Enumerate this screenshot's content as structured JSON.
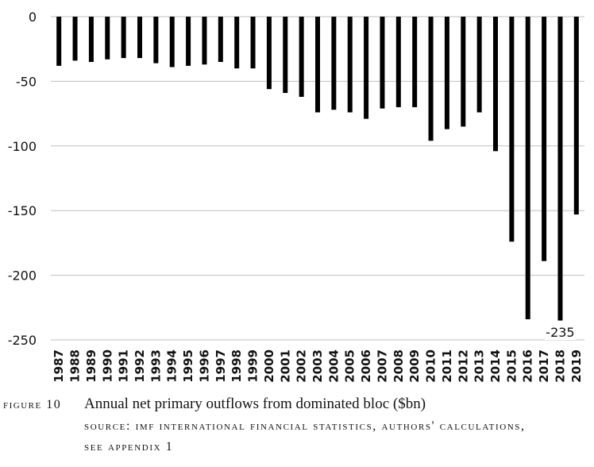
{
  "chart_data": {
    "type": "bar",
    "title": "",
    "xlabel": "",
    "ylabel": "",
    "ylim": [
      -250,
      0
    ],
    "yticks": [
      0,
      -50,
      -100,
      -150,
      -200,
      -250
    ],
    "grid": "horizontal",
    "legend": "none",
    "bar_color": "#000000",
    "grid_color": "#bfbfbf",
    "categories": [
      "1987",
      "1988",
      "1989",
      "1990",
      "1991",
      "1992",
      "1993",
      "1994",
      "1995",
      "1996",
      "1997",
      "1998",
      "1999",
      "2000",
      "2001",
      "2002",
      "2003",
      "2004",
      "2005",
      "2006",
      "2007",
      "2008",
      "2009",
      "2010",
      "2011",
      "2012",
      "2013",
      "2014",
      "2015",
      "2016",
      "2017",
      "2018",
      "2019"
    ],
    "values": [
      -38,
      -34,
      -35,
      -33,
      -32,
      -32,
      -36,
      -39,
      -38,
      -37,
      -35,
      -40,
      -40,
      -56,
      -59,
      -62,
      -74,
      -72,
      -74,
      -79,
      -71,
      -70,
      -70,
      -96,
      -87,
      -85,
      -74,
      -104,
      -174,
      -234,
      -189,
      -235,
      -153
    ],
    "annotations": [
      {
        "category": "2018",
        "text": "-235"
      }
    ]
  },
  "caption": {
    "figure_label": "Figure 10",
    "title": "Annual net primary outflows from dominated bloc ($bn)",
    "source": "Source: IMF International Financial Statistics, authors' calculations, see Appendix 1"
  }
}
